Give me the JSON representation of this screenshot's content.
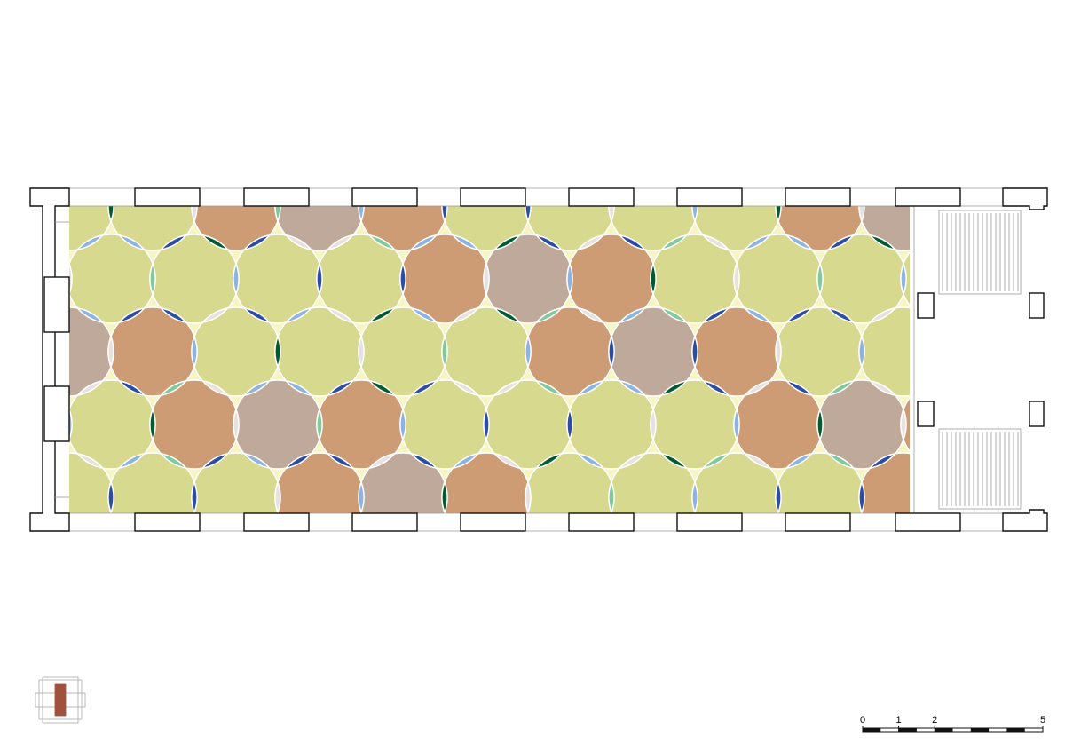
{
  "scale_bar": {
    "ticks": [
      0,
      1,
      2,
      5
    ]
  }
}
